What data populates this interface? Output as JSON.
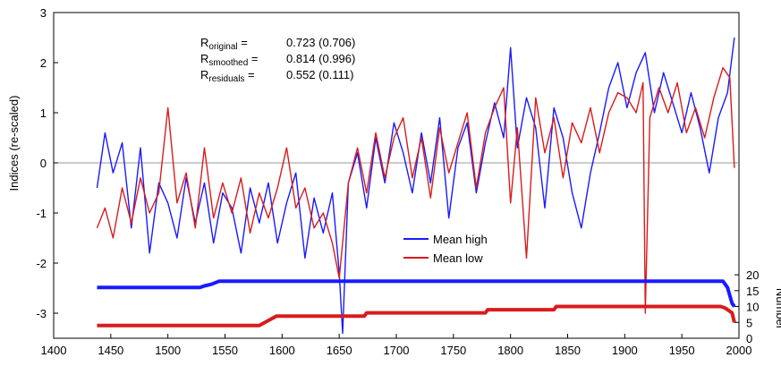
{
  "chart_data": {
    "type": "line",
    "xlabel": "",
    "ylabel": "Indices (re-scaled)",
    "y2label": "Number",
    "xlim": [
      1400,
      2000
    ],
    "ylim": [
      -3.5,
      3
    ],
    "y2lim": [
      0,
      22
    ],
    "x_ticks": [
      "1400",
      "1450",
      "1500",
      "1550",
      "1600",
      "1650",
      "1700",
      "1750",
      "1800",
      "1850",
      "1900",
      "1950",
      "2000"
    ],
    "y_ticks": [
      "-3",
      "-2",
      "-1",
      "0",
      "1",
      "2",
      "3"
    ],
    "y2_ticks": [
      "0",
      "5",
      "10",
      "15",
      "20"
    ],
    "stats": [
      {
        "sym": "R",
        "sub": "original",
        "eq": "=",
        "value": "0.723 (0.706)"
      },
      {
        "sym": "R",
        "sub": "smoothed",
        "eq": "=",
        "value": "0.814 (0.996)"
      },
      {
        "sym": "R",
        "sub": "residuals",
        "eq": "=",
        "value": "0.552 (0.111)"
      }
    ],
    "legend": [
      {
        "label": "Mean high",
        "color": "#1a1aff"
      },
      {
        "label": "Mean low",
        "color": "#d81c1c"
      }
    ],
    "series": [
      {
        "name": "Mean high",
        "color": "#1a1aff",
        "x": [
          1438,
          1445,
          1452,
          1460,
          1468,
          1476,
          1484,
          1492,
          1500,
          1508,
          1516,
          1524,
          1532,
          1540,
          1548,
          1556,
          1564,
          1572,
          1580,
          1588,
          1596,
          1604,
          1612,
          1620,
          1628,
          1636,
          1644,
          1650,
          1653,
          1658,
          1666,
          1674,
          1682,
          1690,
          1698,
          1706,
          1714,
          1722,
          1730,
          1738,
          1746,
          1754,
          1762,
          1770,
          1778,
          1786,
          1794,
          1800,
          1806,
          1814,
          1822,
          1830,
          1838,
          1846,
          1854,
          1862,
          1870,
          1878,
          1886,
          1894,
          1902,
          1910,
          1918,
          1926,
          1934,
          1942,
          1950,
          1958,
          1966,
          1974,
          1982,
          1990,
          1996
        ],
        "values": [
          -0.5,
          0.6,
          -0.2,
          0.4,
          -1.3,
          0.3,
          -1.8,
          -0.4,
          -0.8,
          -1.5,
          -0.3,
          -1.2,
          -0.4,
          -1.6,
          -0.6,
          -0.9,
          -1.8,
          -0.5,
          -1.2,
          -0.4,
          -1.6,
          -0.8,
          -0.2,
          -1.9,
          -0.7,
          -1.4,
          -0.6,
          -2.2,
          -3.4,
          -0.4,
          0.2,
          -0.9,
          0.5,
          -0.4,
          0.8,
          0.2,
          -0.6,
          0.6,
          -0.4,
          0.9,
          -1.1,
          0.3,
          0.8,
          -0.6,
          0.4,
          1.2,
          0.5,
          2.3,
          0.3,
          1.3,
          0.7,
          -0.9,
          1.1,
          0.5,
          -0.6,
          -1.3,
          -0.2,
          0.6,
          1.5,
          2.0,
          1.1,
          1.8,
          2.2,
          1.0,
          1.8,
          1.2,
          0.6,
          1.4,
          0.7,
          -0.2,
          0.9,
          1.4,
          2.5
        ]
      },
      {
        "name": "Mean low",
        "color": "#d81c1c",
        "x": [
          1438,
          1445,
          1452,
          1460,
          1468,
          1476,
          1484,
          1492,
          1500,
          1508,
          1516,
          1524,
          1532,
          1540,
          1548,
          1556,
          1564,
          1572,
          1580,
          1588,
          1596,
          1604,
          1612,
          1620,
          1628,
          1636,
          1644,
          1650,
          1658,
          1666,
          1674,
          1682,
          1690,
          1698,
          1706,
          1714,
          1722,
          1730,
          1738,
          1746,
          1754,
          1762,
          1770,
          1778,
          1786,
          1794,
          1800,
          1806,
          1814,
          1822,
          1830,
          1838,
          1846,
          1854,
          1862,
          1870,
          1878,
          1886,
          1894,
          1902,
          1910,
          1916,
          1918,
          1922,
          1930,
          1938,
          1946,
          1954,
          1962,
          1970,
          1978,
          1986,
          1992,
          1996
        ],
        "values": [
          -1.3,
          -0.9,
          -1.5,
          -0.5,
          -1.2,
          -0.3,
          -1.0,
          -0.6,
          1.1,
          -0.8,
          -0.2,
          -1.3,
          0.3,
          -1.1,
          -0.4,
          -1.0,
          -0.3,
          -1.4,
          -0.6,
          -1.1,
          -0.5,
          0.3,
          -0.9,
          -0.5,
          -1.3,
          -1.0,
          -1.6,
          -2.3,
          -0.4,
          0.3,
          -0.6,
          0.6,
          -0.3,
          0.5,
          0.9,
          -0.3,
          0.5,
          -0.7,
          0.7,
          -0.2,
          0.4,
          1.0,
          -0.5,
          0.6,
          1.1,
          1.5,
          -0.8,
          0.7,
          -1.9,
          1.3,
          0.2,
          0.9,
          -0.3,
          0.8,
          0.4,
          1.1,
          0.2,
          1.0,
          1.4,
          1.3,
          1.0,
          1.6,
          -3.0,
          0.9,
          1.5,
          1.0,
          1.6,
          0.6,
          1.1,
          0.5,
          1.3,
          1.9,
          1.7,
          -0.1
        ]
      },
      {
        "name": "Number (Mean high)",
        "axis": "y2",
        "color": "#1a1aff",
        "x": [
          1438,
          1528,
          1532,
          1538,
          1545,
          1986,
          1990,
          1994,
          1996
        ],
        "values": [
          16,
          16,
          16.5,
          17,
          18,
          18,
          16,
          11,
          10
        ]
      },
      {
        "name": "Number (Mean low)",
        "axis": "y2",
        "color": "#d81c1c",
        "x": [
          1438,
          1580,
          1585,
          1595,
          1672,
          1674,
          1778,
          1780,
          1838,
          1840,
          1984,
          1988,
          1994,
          1996
        ],
        "values": [
          4,
          4,
          5,
          7,
          7,
          8,
          8,
          9,
          9,
          10,
          10,
          9.5,
          8,
          5
        ]
      }
    ]
  }
}
